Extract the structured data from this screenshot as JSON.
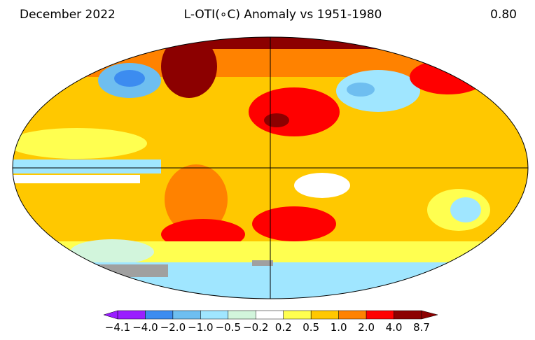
{
  "header": {
    "left": "December 2022",
    "title": "L-OTI(∘C) Anomaly vs 1951-1980",
    "right": "0.80"
  },
  "colorbar": {
    "ticks": [
      "−4.1",
      "−4.0",
      "−2.0",
      "−1.0",
      "−0.5",
      "−0.2",
      "0.2",
      "0.5",
      "1.0",
      "2.0",
      "4.0",
      "8.7"
    ],
    "colors": [
      "#9a1eff",
      "#3c8cf0",
      "#6ebef0",
      "#a0e6ff",
      "#d2f5dc",
      "#ffffff",
      "#ffff50",
      "#ffc800",
      "#ff8200",
      "#ff0000",
      "#8c0000"
    ]
  }
}
